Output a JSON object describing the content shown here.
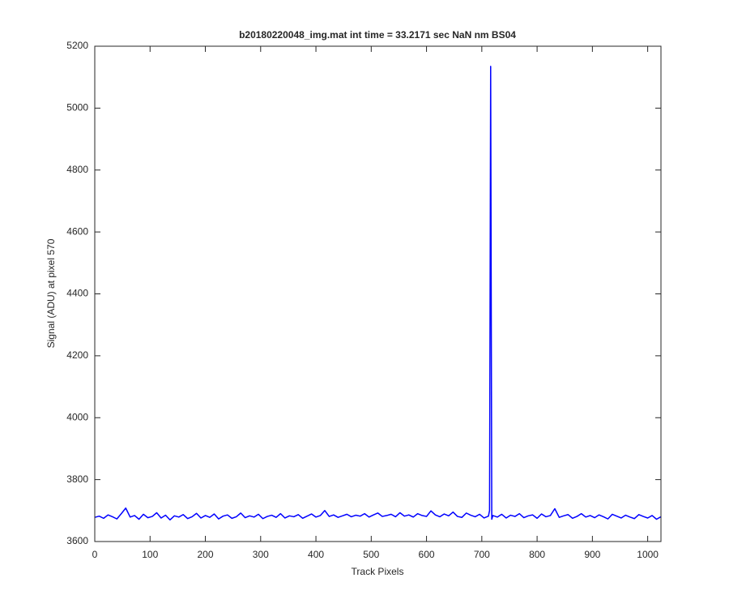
{
  "chart_data": {
    "type": "line",
    "title": "b20180220048_img.mat int time = 33.2171 sec  NaN nm BS04",
    "x_label": "Track Pixels",
    "y_label": "Signal (ADU) at pixel 570",
    "x": [
      0,
      8,
      16,
      24,
      32,
      40,
      48,
      56,
      64,
      72,
      80,
      88,
      96,
      104,
      112,
      120,
      128,
      136,
      144,
      152,
      160,
      168,
      176,
      184,
      192,
      200,
      208,
      216,
      224,
      232,
      240,
      248,
      256,
      264,
      272,
      280,
      288,
      296,
      304,
      312,
      320,
      328,
      336,
      344,
      352,
      360,
      368,
      376,
      384,
      392,
      400,
      408,
      416,
      424,
      432,
      440,
      448,
      456,
      464,
      472,
      480,
      488,
      496,
      504,
      512,
      520,
      528,
      536,
      544,
      552,
      560,
      568,
      576,
      584,
      592,
      600,
      608,
      616,
      624,
      632,
      640,
      648,
      656,
      664,
      672,
      680,
      688,
      696,
      704,
      712,
      714,
      716,
      718,
      720,
      728,
      736,
      744,
      752,
      760,
      768,
      776,
      784,
      792,
      800,
      808,
      816,
      824,
      832,
      840,
      848,
      856,
      864,
      872,
      880,
      888,
      896,
      904,
      912,
      920,
      928,
      936,
      944,
      952,
      960,
      968,
      976,
      984,
      992,
      1000,
      1008,
      1016,
      1024
    ],
    "series": [
      {
        "name": "signal",
        "color": "#0000ff",
        "values": [
          3678,
          3682,
          3675,
          3686,
          3680,
          3673,
          3690,
          3708,
          3679,
          3684,
          3672,
          3688,
          3677,
          3681,
          3693,
          3676,
          3685,
          3670,
          3683,
          3679,
          3687,
          3674,
          3680,
          3691,
          3676,
          3684,
          3678,
          3689,
          3673,
          3682,
          3686,
          3675,
          3680,
          3692,
          3677,
          3683,
          3679,
          3688,
          3674,
          3681,
          3685,
          3678,
          3690,
          3676,
          3683,
          3680,
          3687,
          3675,
          3682,
          3689,
          3679,
          3684,
          3700,
          3681,
          3686,
          3678,
          3683,
          3688,
          3680,
          3685,
          3682,
          3690,
          3679,
          3686,
          3692,
          3681,
          3684,
          3688,
          3680,
          3693,
          3682,
          3686,
          3679,
          3690,
          3684,
          3681,
          3699,
          3686,
          3680,
          3689,
          3683,
          3695,
          3681,
          3678,
          3692,
          3685,
          3680,
          3688,
          3676,
          3682,
          3700,
          5135,
          3672,
          3684,
          3679,
          3688,
          3676,
          3685,
          3681,
          3690,
          3677,
          3683,
          3686,
          3675,
          3689,
          3680,
          3684,
          3706,
          3678,
          3683,
          3687,
          3675,
          3681,
          3690,
          3679,
          3684,
          3677,
          3686,
          3680,
          3673,
          3688,
          3682,
          3676,
          3685,
          3679,
          3674,
          3687,
          3681,
          3676,
          3684,
          3672,
          3680
        ]
      }
    ],
    "xlim": [
      0,
      1024
    ],
    "xticks": [
      0,
      100,
      200,
      300,
      400,
      500,
      600,
      700,
      800,
      900,
      1000
    ],
    "ylim": [
      3600,
      5200
    ],
    "yticks": [
      3600,
      3800,
      4000,
      4200,
      4400,
      4600,
      4800,
      5000,
      5200
    ],
    "grid": false
  }
}
